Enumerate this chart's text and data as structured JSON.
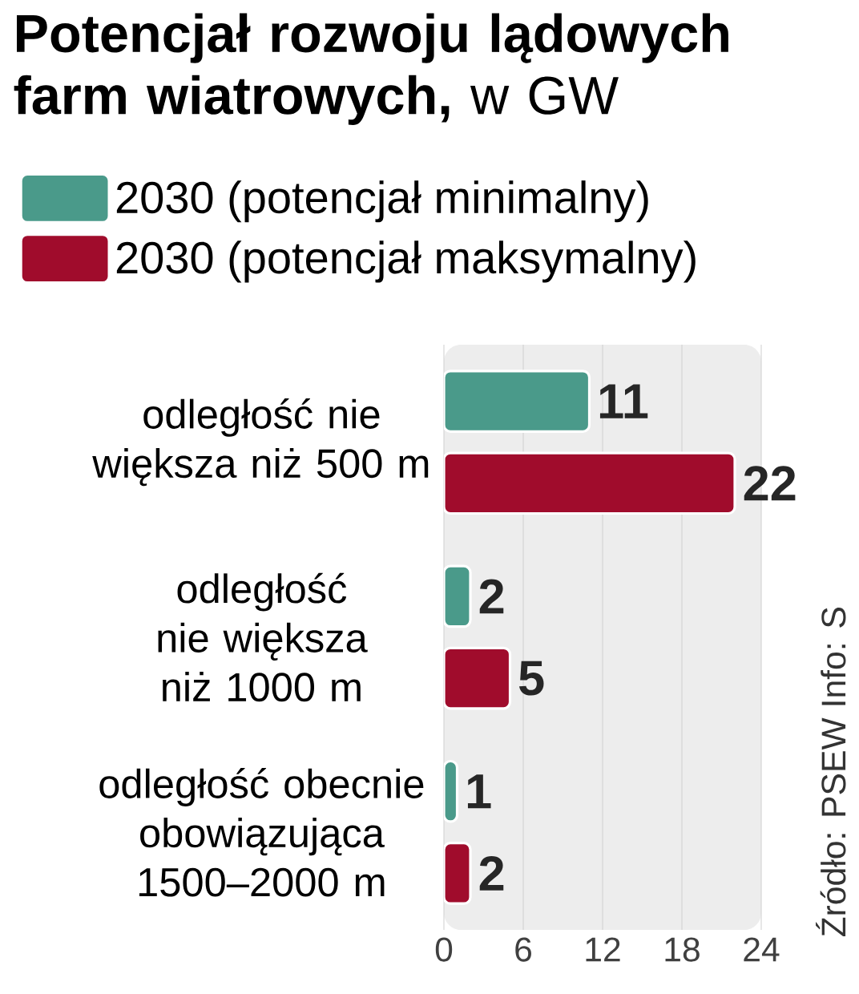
{
  "chart_data": {
    "type": "bar",
    "orientation": "horizontal",
    "title": "**Potencjał rozwoju lądowych farm wiatrowych,** w GW",
    "categories": [
      "odległość  nie większa niż 500 m",
      "odległość  nie większa niż 1000 m",
      "odległość obecnie obowiązująca 1500–2000 m"
    ],
    "series": [
      {
        "name": "2030 (potencjał minimalny)",
        "color": "#4a9a8a",
        "values": [
          11,
          2,
          1
        ]
      },
      {
        "name": "2030 (potencjał maksymalny)",
        "color": "#a00c2c",
        "values": [
          22,
          5,
          2
        ]
      }
    ],
    "xlim": [
      0,
      24
    ],
    "xticks": [
      0,
      6,
      12,
      18,
      24
    ],
    "grid": "x",
    "legend": "top",
    "data_labels": true,
    "annotations": [
      "Źródło: PSEW   Info: S"
    ]
  }
}
